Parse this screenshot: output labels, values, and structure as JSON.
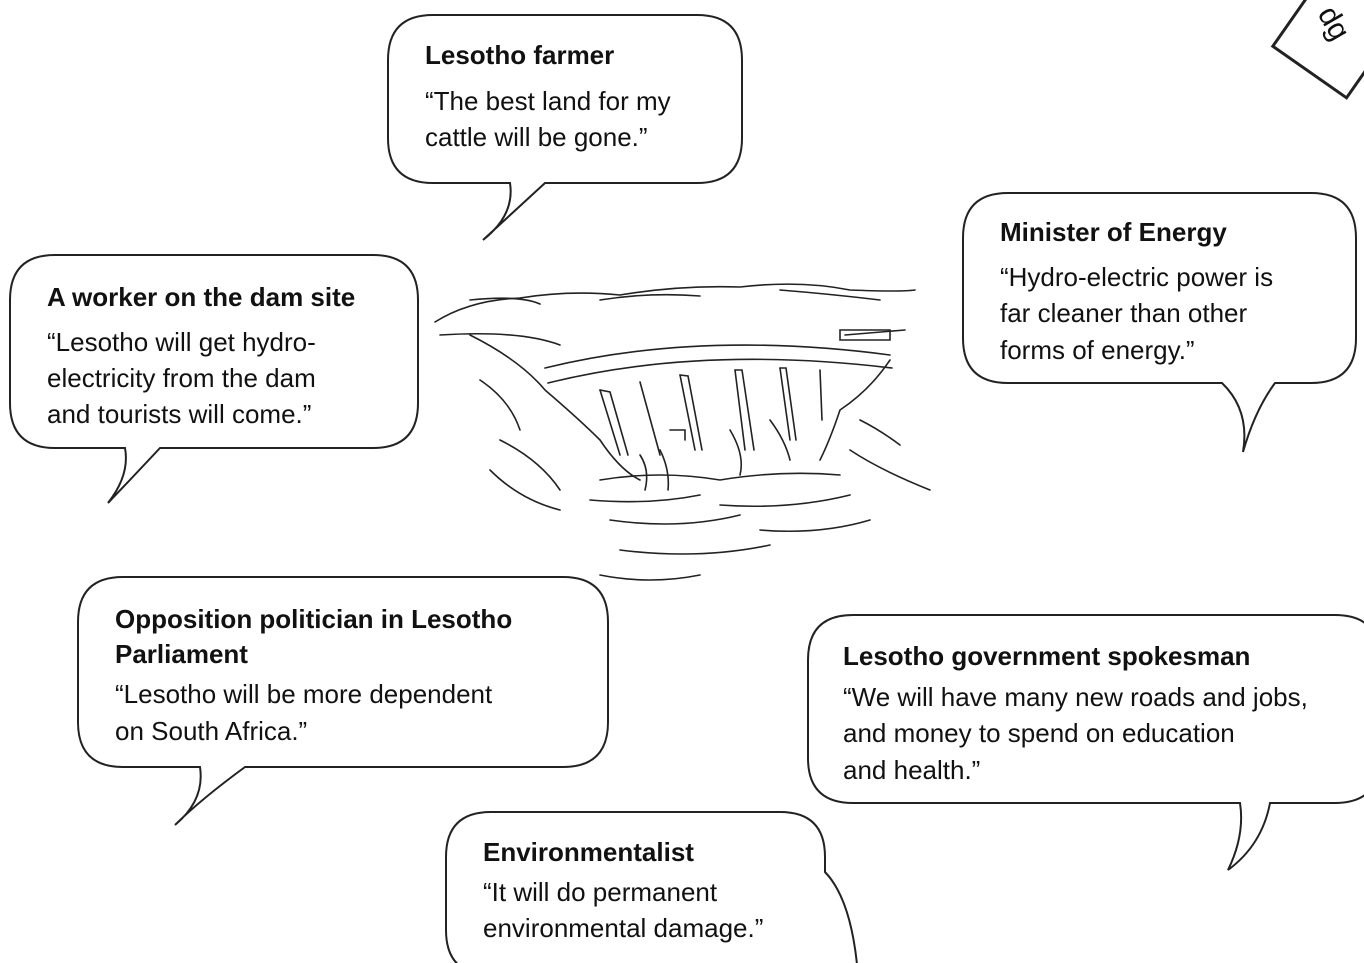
{
  "watermark": "dg",
  "bubbles": [
    {
      "speaker": "Lesotho farmer",
      "quote": [
        "“The best land for my",
        "cattle will be gone.”"
      ]
    },
    {
      "speaker": "Minister of Energy",
      "quote": [
        "“Hydro-electric power is",
        "far cleaner than other",
        "forms of energy.”"
      ]
    },
    {
      "speaker": "A worker on the dam site",
      "quote": [
        "“Lesotho will get hydro-",
        "electricity from the dam",
        "and tourists will come.”"
      ]
    },
    {
      "speaker": [
        "Opposition politician in Lesotho",
        "Parliament"
      ],
      "quote": [
        "“Lesotho will be more dependent",
        "on South Africa.”"
      ]
    },
    {
      "speaker": "Lesotho government spokesman",
      "quote": [
        "“We will have many new roads and jobs,",
        "and money to spend on education",
        "and health.”"
      ]
    },
    {
      "speaker": "Environmentalist",
      "quote": [
        "“It will do permanent",
        "environmental damage.”"
      ]
    }
  ]
}
